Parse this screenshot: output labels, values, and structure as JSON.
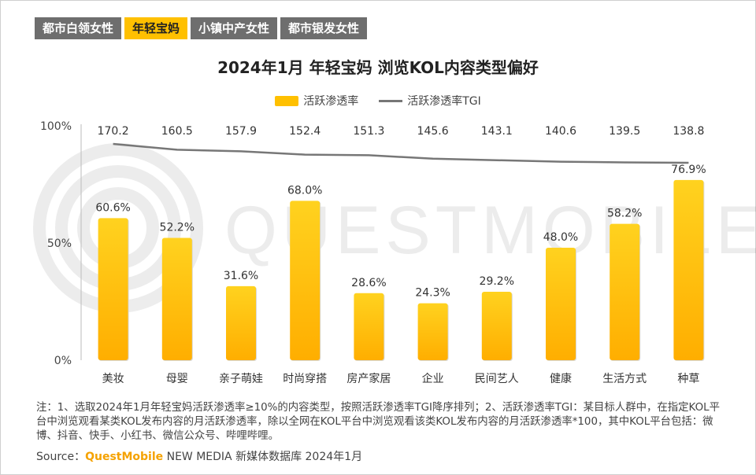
{
  "tabs": [
    {
      "label": "都市白领女性",
      "active": false
    },
    {
      "label": "年轻宝妈",
      "active": true
    },
    {
      "label": "小镇中产女性",
      "active": false
    },
    {
      "label": "都市银发女性",
      "active": false
    }
  ],
  "watermark": "QUESTMOBILE",
  "chart_data": {
    "type": "bar",
    "title": "2024年1月 年轻宝妈 浏览KOL内容类型偏好",
    "categories": [
      "美妆",
      "母婴",
      "亲子萌娃",
      "时尚穿搭",
      "房产家居",
      "企业",
      "民间艺人",
      "健康",
      "生活方式",
      "种草"
    ],
    "series": [
      {
        "name": "活跃渗透率",
        "type": "bar",
        "values": [
          60.6,
          52.2,
          31.6,
          68.0,
          28.6,
          24.3,
          29.2,
          48.0,
          58.2,
          76.9
        ],
        "labels": [
          "60.6%",
          "52.2%",
          "31.6%",
          "68.0%",
          "28.6%",
          "24.3%",
          "29.2%",
          "48.0%",
          "58.2%",
          "76.9%"
        ]
      },
      {
        "name": "活跃渗透率TGI",
        "type": "line",
        "values": [
          170.2,
          160.5,
          157.9,
          152.4,
          151.3,
          145.6,
          143.1,
          140.6,
          139.5,
          138.8
        ],
        "labels": [
          "170.2",
          "160.5",
          "157.9",
          "152.4",
          "151.3",
          "145.6",
          "143.1",
          "140.6",
          "139.5",
          "138.8"
        ]
      }
    ],
    "y_ticks": [
      "100%",
      "50%",
      "0%"
    ],
    "ylim": [
      0,
      100
    ],
    "legend_position": "top-center",
    "grid": false,
    "colors": {
      "bar_top": "#ffd21f",
      "bar_bottom": "#ffae00",
      "line": "#777777"
    }
  },
  "notes": "注：1、选取2024年1月年轻宝妈活跃渗透率≥10%的内容类型，按照活跃渗透率TGI降序排列；2、活跃渗透率TGI：某目标人群中，在指定KOL平台中浏览观看某类KOL发布内容的月活跃渗透率，除以全网在KOL平台中浏览观看该类KOL发布内容的月活跃渗透率*100，其中KOL平台包括：微博、抖音、快手、小红书、微信公众号、哔哩哔哩。",
  "source": {
    "prefix": "Source：",
    "brand": "QuestMobile",
    "suffix": " NEW MEDIA 新媒体数据库 2024年1月"
  }
}
